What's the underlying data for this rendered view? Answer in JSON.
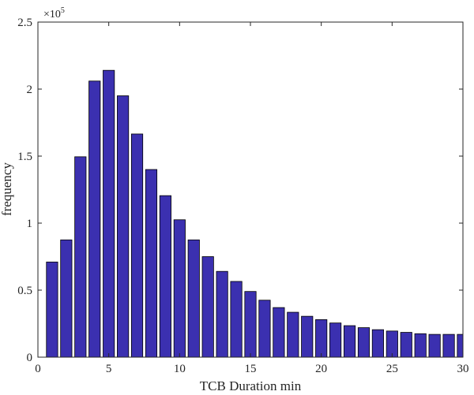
{
  "chart_data": {
    "type": "bar",
    "title": "",
    "xlabel": "TCB Duration  min",
    "ylabel": "frequency",
    "y_multiplier_label": "×10",
    "y_multiplier_exponent": "5",
    "x": [
      1,
      2,
      3,
      4,
      5,
      6,
      7,
      8,
      9,
      10,
      11,
      12,
      13,
      14,
      15,
      16,
      17,
      18,
      19,
      20,
      21,
      22,
      23,
      24,
      25,
      26,
      27,
      28,
      29,
      30
    ],
    "values": [
      71000,
      87500,
      149500,
      206000,
      214000,
      195000,
      166500,
      140000,
      120500,
      102500,
      87500,
      75000,
      64000,
      56500,
      49000,
      42500,
      37000,
      33500,
      30500,
      28000,
      25500,
      23500,
      22000,
      20500,
      19500,
      18500,
      17500,
      17000,
      17000,
      17000
    ],
    "xlim": [
      0,
      30
    ],
    "ylim": [
      0,
      250000
    ],
    "x_ticks": [
      0,
      5,
      10,
      15,
      20,
      25,
      30
    ],
    "x_tick_labels": [
      "0",
      "5",
      "10",
      "15",
      "20",
      "25",
      "30"
    ],
    "y_ticks": [
      0,
      50000,
      100000,
      150000,
      200000,
      250000
    ],
    "y_tick_labels": [
      "0",
      "0.5",
      "1",
      "1.5",
      "2",
      "2.5"
    ],
    "bar_color": "#3b30b0",
    "bar_edge_color": "#000000",
    "grid": false,
    "legend": "none"
  }
}
